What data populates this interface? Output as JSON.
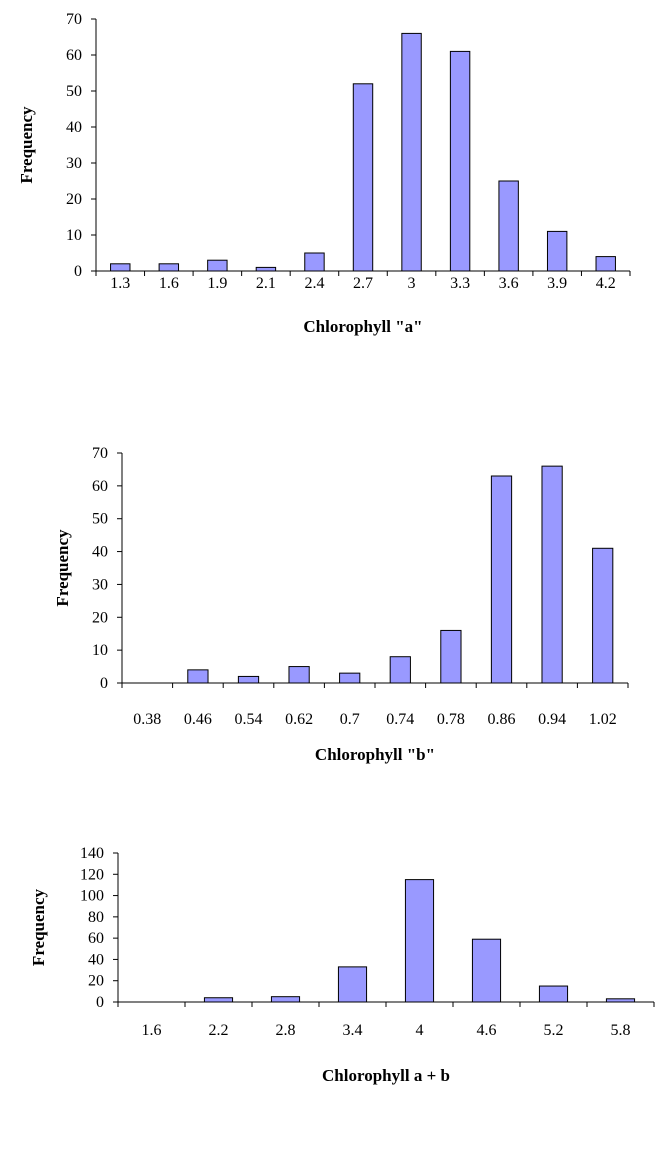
{
  "chart_data": [
    {
      "type": "bar",
      "ylabel": "Frequency",
      "xlabel": "Chlorophyll \"a\"",
      "categories": [
        "1.3",
        "1.6",
        "1.9",
        "2.1",
        "2.4",
        "2.7",
        "3",
        "3.3",
        "3.6",
        "3.9",
        "4.2"
      ],
      "values": [
        2,
        2,
        3,
        1,
        5,
        52,
        66,
        61,
        25,
        11,
        4
      ],
      "ylim": [
        0,
        70
      ],
      "yticks": [
        0,
        10,
        20,
        30,
        40,
        50,
        60,
        70
      ],
      "grid": false,
      "legend": "none",
      "bar_color": "#9999ff"
    },
    {
      "type": "bar",
      "ylabel": "Frequency",
      "xlabel": "Chlorophyll \"b\"",
      "categories": [
        "0.38",
        "0.46",
        "0.54",
        "0.62",
        "0.7",
        "0.74",
        "0.78",
        "0.86",
        "0.94",
        "1.02"
      ],
      "values": [
        0,
        4,
        2,
        5,
        3,
        8,
        16,
        63,
        66,
        41
      ],
      "ylim": [
        0,
        70
      ],
      "yticks": [
        0,
        10,
        20,
        30,
        40,
        50,
        60,
        70
      ],
      "grid": false,
      "legend": "none",
      "bar_color": "#9999ff"
    },
    {
      "type": "bar",
      "ylabel": "Frequency",
      "xlabel": "Chlorophyll a + b",
      "categories": [
        "1.6",
        "2.2",
        "2.8",
        "3.4",
        "4",
        "4.6",
        "5.2",
        "5.8"
      ],
      "values": [
        0,
        4,
        5,
        33,
        115,
        59,
        15,
        3
      ],
      "ylim": [
        0,
        140
      ],
      "yticks": [
        0,
        20,
        40,
        60,
        80,
        100,
        120,
        140
      ],
      "grid": false,
      "legend": "none",
      "bar_color": "#9999ff"
    }
  ]
}
